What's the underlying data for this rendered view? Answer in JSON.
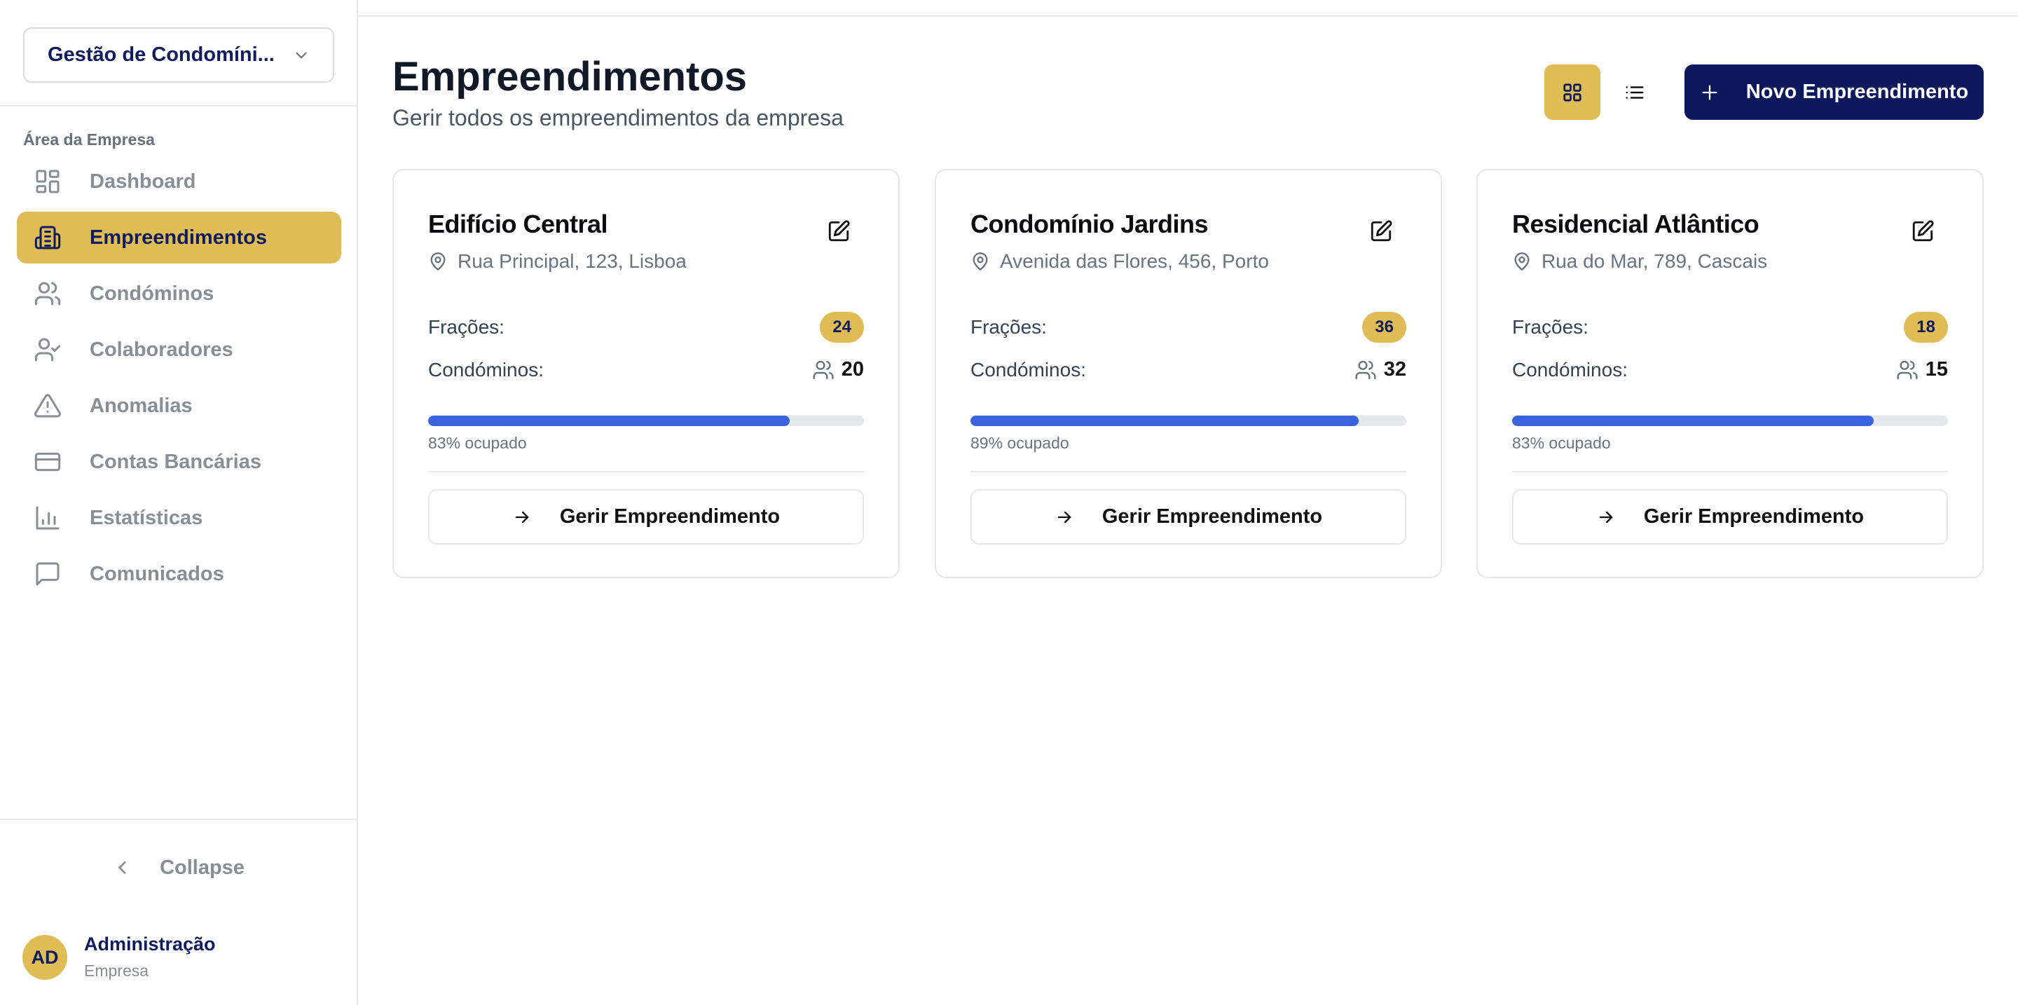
{
  "colors": {
    "accent": "#dfbc55",
    "primary": "#0c185c",
    "progress": "#3b63e0"
  },
  "sidebar": {
    "org_selector": "Gestão de Condomíni...",
    "section_label": "Área da Empresa",
    "items": [
      {
        "label": "Dashboard",
        "icon": "layout-dashboard-icon",
        "active": false
      },
      {
        "label": "Empreendimentos",
        "icon": "building-icon",
        "active": true
      },
      {
        "label": "Condóminos",
        "icon": "users-icon",
        "active": false
      },
      {
        "label": "Colaboradores",
        "icon": "user-check-icon",
        "active": false
      },
      {
        "label": "Anomalias",
        "icon": "warning-triangle-icon",
        "active": false
      },
      {
        "label": "Contas Bancárias",
        "icon": "credit-card-icon",
        "active": false
      },
      {
        "label": "Estatísticas",
        "icon": "bar-chart-icon",
        "active": false
      },
      {
        "label": "Comunicados",
        "icon": "message-square-icon",
        "active": false
      }
    ],
    "collapse_label": "Collapse",
    "user": {
      "initials": "AD",
      "name": "Administração",
      "role": "Empresa"
    }
  },
  "header": {
    "title": "Empreendimentos",
    "subtitle": "Gerir todos os empreendimentos da empresa",
    "view_mode": "grid",
    "new_button": "Novo Empreendimento"
  },
  "labels": {
    "fractions": "Frações:",
    "residents": "Condóminos:",
    "manage": "Gerir Empreendimento"
  },
  "cards": [
    {
      "name": "Edifício Central",
      "address": "Rua Principal, 123, Lisboa",
      "fractions": "24",
      "residents": "20",
      "occupancy": 83,
      "occupancy_label": "83% ocupado"
    },
    {
      "name": "Condomínio Jardins",
      "address": "Avenida das Flores, 456, Porto",
      "fractions": "36",
      "residents": "32",
      "occupancy": 89,
      "occupancy_label": "89% ocupado"
    },
    {
      "name": "Residencial Atlântico",
      "address": "Rua do Mar, 789, Cascais",
      "fractions": "18",
      "residents": "15",
      "occupancy": 83,
      "occupancy_label": "83% ocupado"
    }
  ]
}
